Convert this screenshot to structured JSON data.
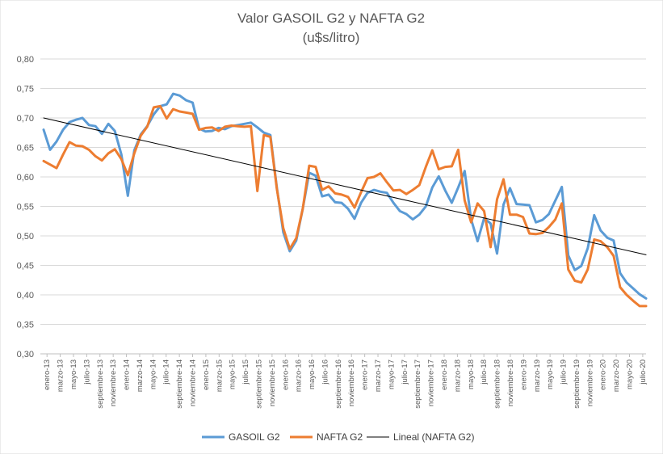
{
  "chart_data": {
    "type": "line",
    "title": "Valor GASOIL G2 y NAFTA G2",
    "subtitle": "(u$s/litro)",
    "ylim": [
      0.3,
      0.8
    ],
    "y_ticks": [
      "0,30",
      "0,35",
      "0,40",
      "0,45",
      "0,50",
      "0,55",
      "0,60",
      "0,65",
      "0,70",
      "0,75",
      "0,80"
    ],
    "grid": "horizontal",
    "legend_position": "bottom",
    "x_tick_labels": [
      "enero-13",
      "marzo-13",
      "mayo-13",
      "julio-13",
      "septiembre-13",
      "noviembre-13",
      "enero-14",
      "marzo-14",
      "mayo-14",
      "julio-14",
      "septiembre-14",
      "noviembre-14",
      "enero-15",
      "marzo-15",
      "mayo-15",
      "julio-15",
      "septiembre-15",
      "noviembre-15",
      "enero-16",
      "marzo-16",
      "mayo-16",
      "julio-16",
      "septiembre-16",
      "noviembre-16",
      "enero-17",
      "marzo-17",
      "mayo-17",
      "julio-17",
      "septiembre-17",
      "noviembre-17",
      "enero-18",
      "marzo-18",
      "mayo-18",
      "julio-18",
      "septiembre-18",
      "noviembre-18",
      "enero-19",
      "marzo-19",
      "mayo-19",
      "julio-19",
      "septiembre-19",
      "noviembre-19",
      "enero-20",
      "marzo-20",
      "mayo-20",
      "julio-20"
    ],
    "series": [
      {
        "name": "GASOIL G2",
        "color": "#5B9BD5",
        "values": [
          0.68,
          0.646,
          0.66,
          0.68,
          0.693,
          0.697,
          0.7,
          0.688,
          0.686,
          0.673,
          0.69,
          0.678,
          0.638,
          0.568,
          0.645,
          0.672,
          0.686,
          0.706,
          0.72,
          0.723,
          0.741,
          0.738,
          0.73,
          0.726,
          0.682,
          0.677,
          0.678,
          0.683,
          0.681,
          0.686,
          0.688,
          0.69,
          0.692,
          0.684,
          0.675,
          0.671,
          0.582,
          0.506,
          0.474,
          0.492,
          0.546,
          0.607,
          0.602,
          0.567,
          0.57,
          0.557,
          0.556,
          0.546,
          0.529,
          0.556,
          0.573,
          0.578,
          0.575,
          0.573,
          0.556,
          0.542,
          0.537,
          0.528,
          0.536,
          0.55,
          0.582,
          0.601,
          0.577,
          0.556,
          0.582,
          0.61,
          0.528,
          0.491,
          0.53,
          0.521,
          0.47,
          0.553,
          0.581,
          0.554,
          0.553,
          0.552,
          0.523,
          0.527,
          0.537,
          0.56,
          0.583,
          0.467,
          0.442,
          0.449,
          0.479,
          0.535,
          0.509,
          0.497,
          0.492,
          0.437,
          0.421,
          0.411,
          0.401,
          0.394
        ]
      },
      {
        "name": "NAFTA G2",
        "color": "#ED7D31",
        "values": [
          0.627,
          0.621,
          0.615,
          0.638,
          0.659,
          0.653,
          0.652,
          0.646,
          0.635,
          0.628,
          0.64,
          0.647,
          0.63,
          0.603,
          0.64,
          0.67,
          0.685,
          0.718,
          0.72,
          0.699,
          0.715,
          0.711,
          0.709,
          0.707,
          0.68,
          0.683,
          0.684,
          0.678,
          0.685,
          0.687,
          0.686,
          0.685,
          0.686,
          0.576,
          0.671,
          0.668,
          0.58,
          0.513,
          0.478,
          0.496,
          0.546,
          0.619,
          0.617,
          0.578,
          0.584,
          0.572,
          0.57,
          0.566,
          0.548,
          0.574,
          0.598,
          0.6,
          0.606,
          0.591,
          0.577,
          0.578,
          0.571,
          0.578,
          0.586,
          0.617,
          0.645,
          0.613,
          0.617,
          0.618,
          0.646,
          0.56,
          0.523,
          0.555,
          0.542,
          0.481,
          0.562,
          0.596,
          0.536,
          0.536,
          0.532,
          0.504,
          0.503,
          0.505,
          0.515,
          0.528,
          0.555,
          0.443,
          0.424,
          0.421,
          0.443,
          0.494,
          0.491,
          0.481,
          0.466,
          0.413,
          0.4,
          0.39,
          0.381,
          0.381
        ]
      },
      {
        "name": "Lineal (NAFTA G2)",
        "color": "#000000",
        "trend": true,
        "values": [
          0.7,
          0.468
        ]
      }
    ]
  }
}
